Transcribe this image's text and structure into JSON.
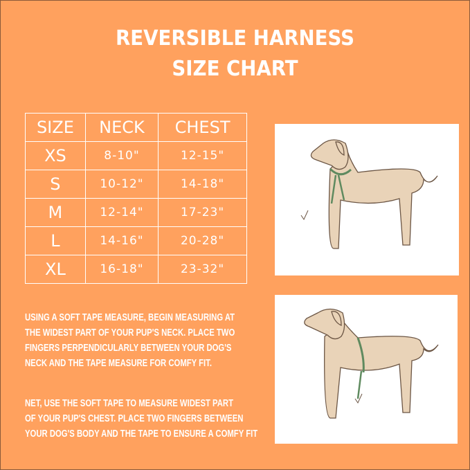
{
  "title": {
    "line1": "REVERSIBLE HARNESS",
    "line2": "SIZE CHART"
  },
  "table": {
    "headers": [
      "SIZE",
      "NECK",
      "CHEST"
    ],
    "rows": [
      {
        "size": "XS",
        "neck": "8-10\"",
        "chest": "12-15\""
      },
      {
        "size": "S",
        "neck": "10-12\"",
        "chest": "14-18\""
      },
      {
        "size": "M",
        "neck": "12-14\"",
        "chest": "17-23\""
      },
      {
        "size": "L",
        "neck": "14-16\"",
        "chest": "20-28\""
      },
      {
        "size": "XL",
        "neck": "16-18\"",
        "chest": "23-32\""
      }
    ]
  },
  "instructions": {
    "neck": [
      "USING A SOFT TAPE MEASURE, BEGIN MEASURING AT",
      "THE WIDEST PART OF YOUR PUP'S NECK. PLACE TWO",
      "FINGERS PERPENDICULARLY BETWEEN YOUR DOG'S",
      "NECK AND THE TAPE MEASURE FOR COMFY FIT."
    ],
    "chest": [
      "NET, USE THE SOFT TAPE TO MEASURE WIDEST PART",
      "OF YOUR PUP'S CHEST. PLACE TWO FINGERS BETWEEN",
      "YOUR DOG'S BODY AND THE TAPE TO ENSURE A COMFY FIT"
    ]
  },
  "colors": {
    "background": "#ffa15e",
    "text": "#ffffff",
    "dog": "#e9d3b8",
    "tape": "#5f8a5f"
  },
  "images": [
    "dog-neck-measurement-illustration",
    "dog-chest-measurement-illustration"
  ]
}
